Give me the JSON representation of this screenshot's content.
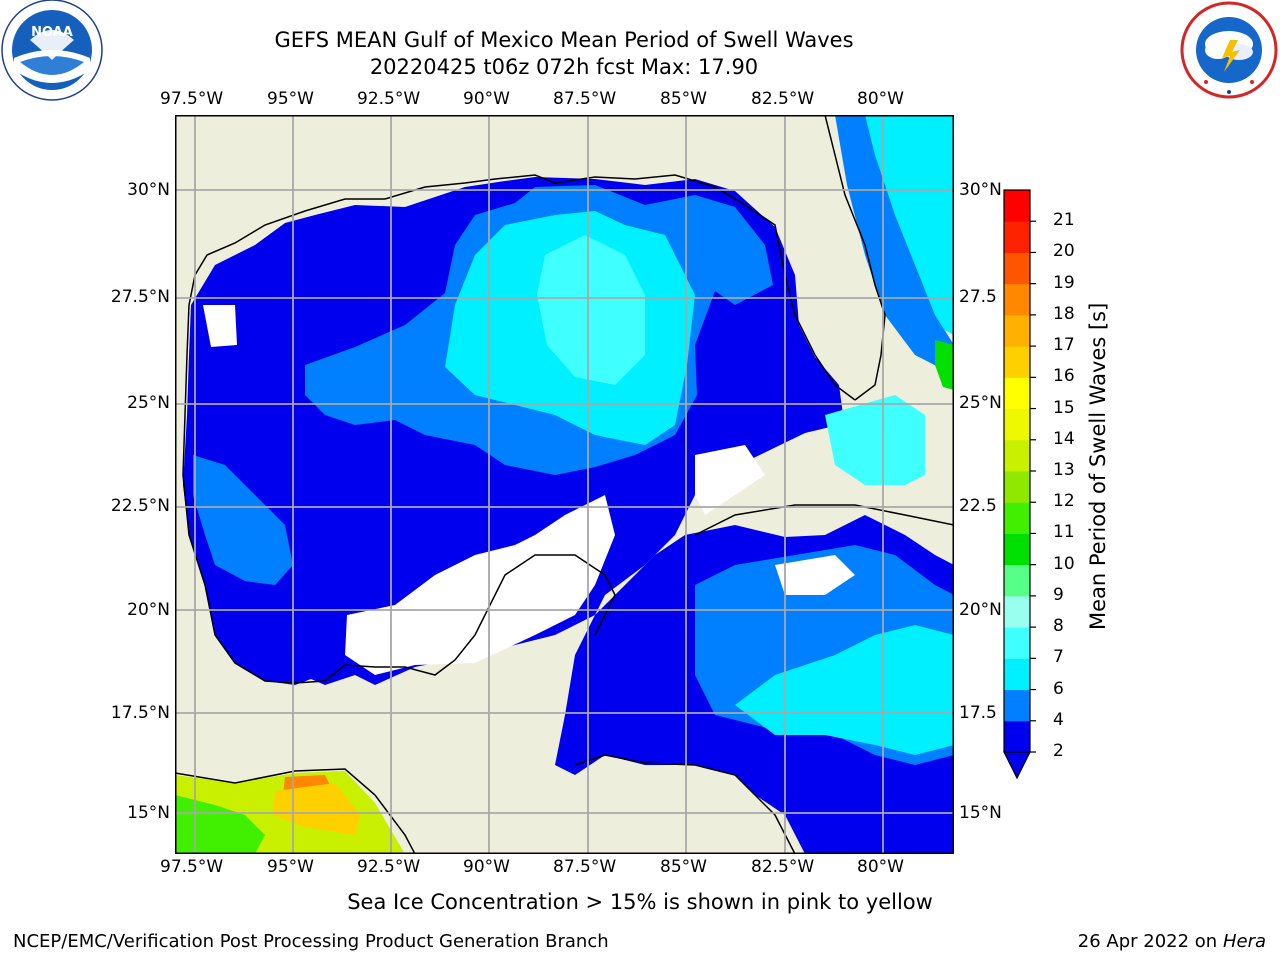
{
  "title": {
    "line1": "GEFS MEAN Gulf of Mexico Mean Period of Swell Waves",
    "line2": "20220425 t06z 072h fcst   Max: 17.90"
  },
  "map": {
    "lon_labels": [
      "97.5°W",
      "95°W",
      "92.5°W",
      "90°W",
      "87.5°W",
      "85°W",
      "82.5°W",
      "80°W"
    ],
    "lat_labels": [
      "30°N",
      "27.5°N",
      "25°N",
      "22.5°N",
      "20°N",
      "17.5°N",
      "15°N"
    ],
    "lat_labels_right": [
      "30°N",
      "27.5",
      "25°N",
      "22.5",
      "20°N",
      "17.5",
      "15°N"
    ],
    "land_color": "#eeeedd",
    "grid": true
  },
  "colorbar": {
    "label": "Mean Period of Swell Waves [s]",
    "ticks": [
      "2",
      "4",
      "6",
      "7",
      "8",
      "9",
      "10",
      "11",
      "12",
      "13",
      "14",
      "15",
      "16",
      "17",
      "18",
      "19",
      "20",
      "21"
    ],
    "colors": [
      "#0000f0",
      "#0080ff",
      "#00f0ff",
      "#40ffff",
      "#99ffee",
      "#55ff88",
      "#00e000",
      "#40f000",
      "#90e800",
      "#c8f000",
      "#eef800",
      "#ffff00",
      "#ffd000",
      "#ffb000",
      "#ff8800",
      "#ff5500",
      "#ff2200",
      "#ff0000"
    ],
    "extend": "min"
  },
  "legend_note": "Sea Ice Concentration > 15% is shown in pink to yellow",
  "footer": {
    "left": "NCEP/EMC/Verification Post Processing Product Generation Branch",
    "right_prefix": "26 Apr 2022 on ",
    "right_machine": "Hera"
  },
  "logos": {
    "noaa": "NOAA",
    "noaa_ring": "NATIONAL OCEANIC AND ATMOSPHERIC ADMINISTRATION · U.S. DEPARTMENT OF COMMERCE",
    "nws_ring": "NATIONAL WEATHER SERVICE"
  }
}
